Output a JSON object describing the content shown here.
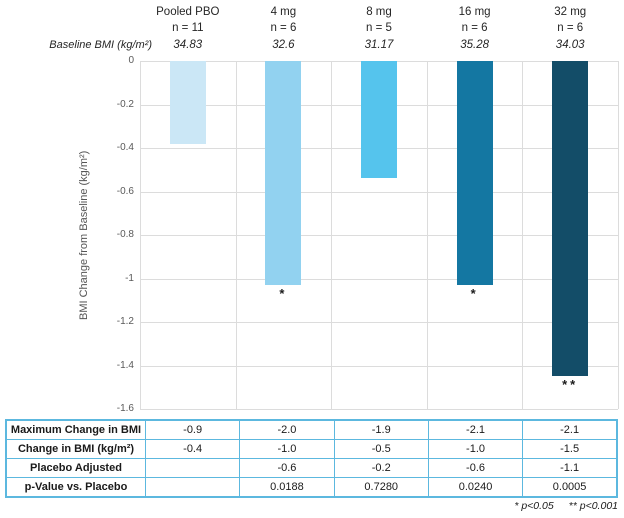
{
  "chart_data": {
    "type": "bar",
    "title": "",
    "categories": [
      "Pooled PBO",
      "4 mg",
      "8 mg",
      "16 mg",
      "32 mg"
    ],
    "n_labels": [
      "n = 11",
      "n = 6",
      "n = 5",
      "n = 6",
      "n = 6"
    ],
    "baseline_bmi_label": "Baseline BMI (kg/m²)",
    "baseline_bmi": [
      "34.83",
      "32.6",
      "31.17",
      "35.28",
      "34.03"
    ],
    "values": [
      -0.38,
      -1.03,
      -0.54,
      -1.03,
      -1.45
    ],
    "significance": [
      "",
      "*",
      "",
      "*",
      "**"
    ],
    "bar_colors": [
      "#cbe7f6",
      "#92d2f0",
      "#55c4ed",
      "#1477a2",
      "#134d68"
    ],
    "gridline_color": "#dcdcdc",
    "xlabel": "",
    "ylabel": "BMI Change from Baseline (kg/m²)",
    "ylim": [
      0,
      -1.6
    ],
    "yticks": [
      "0",
      "-0.2",
      "-0.4",
      "-0.6",
      "-0.8",
      "-1",
      "-1.2",
      "-1.4",
      "-1.6"
    ],
    "grid": true,
    "legend": false
  },
  "table": {
    "border_color": "#5cb8df",
    "rows": [
      {
        "label": "Maximum Change in BMI",
        "values": [
          "-0.9",
          "-2.0",
          "-1.9",
          "-2.1",
          "-2.1"
        ]
      },
      {
        "label": "Change in BMI (kg/m²)",
        "values": [
          "-0.4",
          "-1.0",
          "-0.5",
          "-1.0",
          "-1.5"
        ]
      },
      {
        "label": "Placebo Adjusted",
        "values": [
          "",
          "-0.6",
          "-0.2",
          "-0.6",
          "-1.1"
        ]
      },
      {
        "label": "p-Value vs. Placebo",
        "values": [
          "",
          "0.0188",
          "0.7280",
          "0.0240",
          "0.0005"
        ]
      }
    ]
  },
  "footnote": {
    "p05": "* p<0.05",
    "p001": "** p<0.001"
  }
}
